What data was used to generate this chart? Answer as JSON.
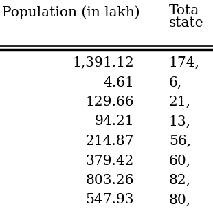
{
  "col1_header": "Population (in lakh)",
  "col2_header_line1": "Tota",
  "col2_header_line2": "state",
  "col1_values": [
    "1,391.12",
    "4.61",
    "129.66",
    "94.21",
    "214.87",
    "379.42",
    "803.26",
    "547.93"
  ],
  "col2_values": [
    "174,",
    "6,",
    "21,",
    "13,",
    "56,",
    "60,",
    "82,",
    "80,"
  ],
  "background_color": "#ffffff",
  "text_color": "#000000",
  "font_size": 14.5,
  "header_font_size": 14.5,
  "fig_width": 3.1,
  "fig_height": 3.1,
  "dpi": 100
}
